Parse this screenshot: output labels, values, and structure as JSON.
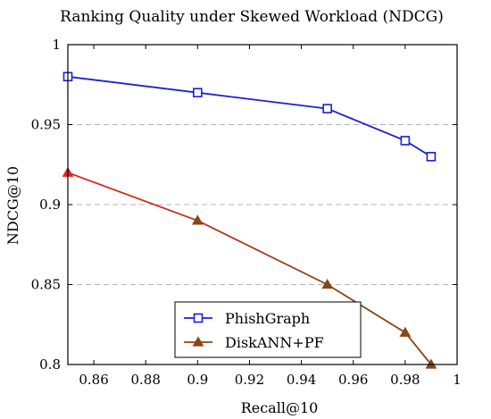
{
  "chart_data": {
    "type": "line",
    "title": "Ranking Quality under Skewed Workload (NDCG)",
    "xlabel": "Recall@10",
    "ylabel": "NDCG@10",
    "xlim": [
      0.85,
      1.0
    ],
    "ylim": [
      0.8,
      1.0
    ],
    "xticks": [
      0.86,
      0.88,
      0.9,
      0.92,
      0.94,
      0.96,
      0.98,
      1.0
    ],
    "xtick_labels": [
      "0.86",
      "0.88",
      "0.9",
      "0.92",
      "0.94",
      "0.96",
      "0.98",
      "1"
    ],
    "yticks": [
      0.8,
      0.85,
      0.9,
      0.95,
      1.0
    ],
    "ytick_labels": [
      "0.8",
      "0.85",
      "0.9",
      "0.95",
      "1"
    ],
    "grid": "horizontal dashed",
    "legend_position": "bottom-center",
    "series": [
      {
        "name": "PhishGraph",
        "color": "#1f1fd6",
        "marker": "square",
        "x": [
          0.85,
          0.9,
          0.95,
          0.98,
          0.99
        ],
        "y": [
          0.98,
          0.97,
          0.96,
          0.94,
          0.93
        ]
      },
      {
        "name": "DiskANN+PF",
        "color": "#8b4513",
        "start_color": "#e62020",
        "marker": "triangle",
        "x": [
          0.85,
          0.9,
          0.95,
          0.98,
          0.99
        ],
        "y": [
          0.92,
          0.89,
          0.85,
          0.82,
          0.8
        ]
      }
    ]
  }
}
